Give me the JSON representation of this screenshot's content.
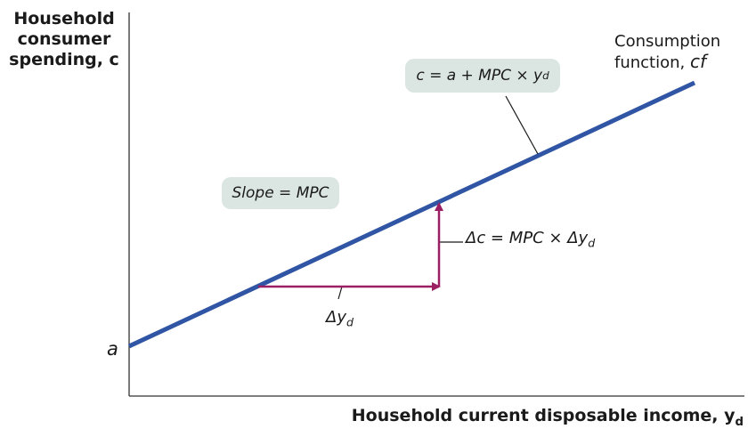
{
  "y_axis_title": [
    "Household",
    "consumer",
    "spending, c"
  ],
  "x_axis_title": "Household current disposable income, y",
  "x_axis_subscript": "d",
  "intercept_label": "a",
  "curve_label": {
    "line1": "Consumption",
    "line2": "function, ",
    "symbol": "cf"
  },
  "equation_box": {
    "text": "c = a + MPC × y",
    "subscript": "d"
  },
  "slope_box": "Slope = MPC",
  "delta_c_label": {
    "text": "Δc = MPC × Δy",
    "subscript": "d"
  },
  "delta_y_label": {
    "text": "Δy",
    "subscript": "d"
  },
  "colors": {
    "line": "#2f55a4",
    "arrow": "#9a1f63",
    "box": "#dbe6e2",
    "axis": "#333333"
  }
}
